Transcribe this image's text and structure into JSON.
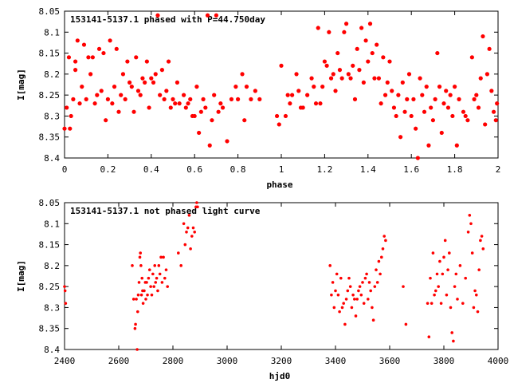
{
  "chart_data": [
    {
      "type": "scatter",
      "title": "153141-5137.1 phased with P=44.750day",
      "xlabel": "phase",
      "ylabel": "I[mag]",
      "xlim": [
        0,
        2
      ],
      "ylim": [
        8.05,
        8.4
      ],
      "y_inverted": true,
      "xticks": [
        "0",
        "0.2",
        "0.4",
        "0.6",
        "0.8",
        "1",
        "1.2",
        "1.4",
        "1.6",
        "1.8",
        "2"
      ],
      "yticks": [
        "8.05",
        "8.1",
        "8.15",
        "8.2",
        "8.25",
        "8.3",
        "8.35",
        "8.4"
      ],
      "grid": false,
      "legend": "none",
      "point_color": "#ff0000",
      "points": [
        [
          0.0,
          8.33
        ],
        [
          0.01,
          8.28
        ],
        [
          0.02,
          8.16
        ],
        [
          0.025,
          8.33
        ],
        [
          0.03,
          8.3
        ],
        [
          0.04,
          8.26
        ],
        [
          0.05,
          8.19
        ],
        [
          0.05,
          8.17
        ],
        [
          0.06,
          8.12
        ],
        [
          0.07,
          8.27
        ],
        [
          0.08,
          8.23
        ],
        [
          0.09,
          8.13
        ],
        [
          0.1,
          8.26
        ],
        [
          0.11,
          8.16
        ],
        [
          0.12,
          8.2
        ],
        [
          0.13,
          8.16
        ],
        [
          0.14,
          8.27
        ],
        [
          0.15,
          8.25
        ],
        [
          0.16,
          8.14
        ],
        [
          0.17,
          8.24
        ],
        [
          0.18,
          8.15
        ],
        [
          0.19,
          8.31
        ],
        [
          0.2,
          8.26
        ],
        [
          0.21,
          8.12
        ],
        [
          0.22,
          8.27
        ],
        [
          0.23,
          8.23
        ],
        [
          0.24,
          8.14
        ],
        [
          0.25,
          8.29
        ],
        [
          0.26,
          8.25
        ],
        [
          0.27,
          8.2
        ],
        [
          0.28,
          8.26
        ],
        [
          0.29,
          8.17
        ],
        [
          0.3,
          8.22
        ],
        [
          0.31,
          8.23
        ],
        [
          0.32,
          8.29
        ],
        [
          0.33,
          8.16
        ],
        [
          0.34,
          8.24
        ],
        [
          0.35,
          8.25
        ],
        [
          0.36,
          8.21
        ],
        [
          0.37,
          8.22
        ],
        [
          0.38,
          8.17
        ],
        [
          0.39,
          8.28
        ],
        [
          0.4,
          8.21
        ],
        [
          0.41,
          8.22
        ],
        [
          0.42,
          8.2
        ],
        [
          0.43,
          8.06
        ],
        [
          0.44,
          8.25
        ],
        [
          0.45,
          8.19
        ],
        [
          0.46,
          8.26
        ],
        [
          0.47,
          8.24
        ],
        [
          0.48,
          8.17
        ],
        [
          0.49,
          8.28
        ],
        [
          0.5,
          8.26
        ],
        [
          0.51,
          8.27
        ],
        [
          0.52,
          8.22
        ],
        [
          0.53,
          8.27
        ],
        [
          0.55,
          8.25
        ],
        [
          0.56,
          8.28
        ],
        [
          0.57,
          8.27
        ],
        [
          0.58,
          8.26
        ],
        [
          0.59,
          8.3
        ],
        [
          0.6,
          8.3
        ],
        [
          0.61,
          8.23
        ],
        [
          0.62,
          8.34
        ],
        [
          0.63,
          8.29
        ],
        [
          0.64,
          8.26
        ],
        [
          0.65,
          8.28
        ],
        [
          0.66,
          8.06
        ],
        [
          0.67,
          8.37
        ],
        [
          0.68,
          8.31
        ],
        [
          0.69,
          8.25
        ],
        [
          0.7,
          8.06
        ],
        [
          0.71,
          8.29
        ],
        [
          0.72,
          8.27
        ],
        [
          0.73,
          8.28
        ],
        [
          0.75,
          8.36
        ],
        [
          0.77,
          8.26
        ],
        [
          0.79,
          8.23
        ],
        [
          0.8,
          8.26
        ],
        [
          0.82,
          8.2
        ],
        [
          0.83,
          8.31
        ],
        [
          0.84,
          8.23
        ],
        [
          0.86,
          8.26
        ],
        [
          0.88,
          8.24
        ],
        [
          0.9,
          8.26
        ],
        [
          0.98,
          8.3
        ],
        [
          0.99,
          8.32
        ],
        [
          1.0,
          8.18
        ],
        [
          1.02,
          8.3
        ],
        [
          1.03,
          8.25
        ],
        [
          1.04,
          8.27
        ],
        [
          1.05,
          8.25
        ],
        [
          1.07,
          8.2
        ],
        [
          1.08,
          8.24
        ],
        [
          1.09,
          8.28
        ],
        [
          1.1,
          8.28
        ],
        [
          1.12,
          8.25
        ],
        [
          1.14,
          8.21
        ],
        [
          1.15,
          8.23
        ],
        [
          1.16,
          8.27
        ],
        [
          1.17,
          8.09
        ],
        [
          1.18,
          8.27
        ],
        [
          1.19,
          8.23
        ],
        [
          1.2,
          8.17
        ],
        [
          1.21,
          8.18
        ],
        [
          1.22,
          8.1
        ],
        [
          1.23,
          8.21
        ],
        [
          1.24,
          8.2
        ],
        [
          1.25,
          8.24
        ],
        [
          1.26,
          8.15
        ],
        [
          1.27,
          8.19
        ],
        [
          1.28,
          8.21
        ],
        [
          1.29,
          8.1
        ],
        [
          1.3,
          8.08
        ],
        [
          1.31,
          8.2
        ],
        [
          1.32,
          8.21
        ],
        [
          1.33,
          8.18
        ],
        [
          1.34,
          8.26
        ],
        [
          1.35,
          8.14
        ],
        [
          1.36,
          8.19
        ],
        [
          1.37,
          8.09
        ],
        [
          1.38,
          8.22
        ],
        [
          1.39,
          8.12
        ],
        [
          1.4,
          8.17
        ],
        [
          1.41,
          8.08
        ],
        [
          1.42,
          8.15
        ],
        [
          1.43,
          8.21
        ],
        [
          1.44,
          8.13
        ],
        [
          1.45,
          8.21
        ],
        [
          1.46,
          8.27
        ],
        [
          1.47,
          8.16
        ],
        [
          1.48,
          8.25
        ],
        [
          1.49,
          8.22
        ],
        [
          1.5,
          8.17
        ],
        [
          1.51,
          8.24
        ],
        [
          1.52,
          8.28
        ],
        [
          1.53,
          8.3
        ],
        [
          1.54,
          8.25
        ],
        [
          1.55,
          8.35
        ],
        [
          1.56,
          8.22
        ],
        [
          1.57,
          8.29
        ],
        [
          1.58,
          8.26
        ],
        [
          1.59,
          8.2
        ],
        [
          1.6,
          8.3
        ],
        [
          1.61,
          8.26
        ],
        [
          1.62,
          8.33
        ],
        [
          1.63,
          8.4
        ],
        [
          1.64,
          8.21
        ],
        [
          1.65,
          8.25
        ],
        [
          1.66,
          8.29
        ],
        [
          1.67,
          8.23
        ],
        [
          1.68,
          8.37
        ],
        [
          1.69,
          8.28
        ],
        [
          1.7,
          8.31
        ],
        [
          1.71,
          8.26
        ],
        [
          1.72,
          8.15
        ],
        [
          1.73,
          8.23
        ],
        [
          1.74,
          8.34
        ],
        [
          1.75,
          8.27
        ],
        [
          1.76,
          8.24
        ],
        [
          1.77,
          8.28
        ],
        [
          1.78,
          8.25
        ],
        [
          1.79,
          8.3
        ],
        [
          1.8,
          8.23
        ],
        [
          1.81,
          8.37
        ],
        [
          1.82,
          8.26
        ],
        [
          1.84,
          8.29
        ],
        [
          1.85,
          8.3
        ],
        [
          1.86,
          8.31
        ],
        [
          1.88,
          8.16
        ],
        [
          1.89,
          8.26
        ],
        [
          1.9,
          8.25
        ],
        [
          1.91,
          8.28
        ],
        [
          1.92,
          8.21
        ],
        [
          1.93,
          8.11
        ],
        [
          1.94,
          8.32
        ],
        [
          1.95,
          8.2
        ],
        [
          1.96,
          8.14
        ],
        [
          1.97,
          8.24
        ],
        [
          1.98,
          8.29
        ],
        [
          1.99,
          8.31
        ],
        [
          1.995,
          8.27
        ]
      ]
    },
    {
      "type": "scatter",
      "title": "153141-5137.1 not phased light curve",
      "xlabel": "hjd0",
      "ylabel": "I[mag]",
      "xlim": [
        2400,
        4000
      ],
      "ylim": [
        8.05,
        8.4
      ],
      "y_inverted": true,
      "xticks": [
        "2400",
        "2600",
        "2800",
        "3000",
        "3200",
        "3400",
        "3600",
        "3800",
        "4000"
      ],
      "yticks": [
        "8.05",
        "8.1",
        "8.15",
        "8.2",
        "8.25",
        "8.3",
        "8.35",
        "8.4"
      ],
      "grid": false,
      "legend": "none",
      "point_color": "#ff0000",
      "points": [
        [
          2400,
          8.25
        ],
        [
          2402,
          8.26
        ],
        [
          2404,
          8.29
        ],
        [
          2650,
          8.2
        ],
        [
          2655,
          8.28
        ],
        [
          2660,
          8.35
        ],
        [
          2662,
          8.34
        ],
        [
          2665,
          8.28
        ],
        [
          2668,
          8.4
        ],
        [
          2670,
          8.31
        ],
        [
          2672,
          8.27
        ],
        [
          2675,
          8.24
        ],
        [
          2678,
          8.18
        ],
        [
          2680,
          8.17
        ],
        [
          2682,
          8.2
        ],
        [
          2684,
          8.27
        ],
        [
          2686,
          8.23
        ],
        [
          2688,
          8.26
        ],
        [
          2690,
          8.29
        ],
        [
          2694,
          8.26
        ],
        [
          2698,
          8.24
        ],
        [
          2700,
          8.28
        ],
        [
          2703,
          8.24
        ],
        [
          2706,
          8.27
        ],
        [
          2710,
          8.23
        ],
        [
          2714,
          8.21
        ],
        [
          2718,
          8.25
        ],
        [
          2722,
          8.27
        ],
        [
          2726,
          8.22
        ],
        [
          2730,
          8.25
        ],
        [
          2733,
          8.2
        ],
        [
          2736,
          8.24
        ],
        [
          2740,
          8.23
        ],
        [
          2744,
          8.26
        ],
        [
          2748,
          8.2
        ],
        [
          2752,
          8.22
        ],
        [
          2756,
          8.18
        ],
        [
          2760,
          8.24
        ],
        [
          2765,
          8.18
        ],
        [
          2770,
          8.23
        ],
        [
          2775,
          8.21
        ],
        [
          2780,
          8.25
        ],
        [
          2820,
          8.17
        ],
        [
          2830,
          8.2
        ],
        [
          2840,
          8.1
        ],
        [
          2845,
          8.15
        ],
        [
          2850,
          8.12
        ],
        [
          2855,
          8.11
        ],
        [
          2860,
          8.08
        ],
        [
          2865,
          8.16
        ],
        [
          2870,
          8.13
        ],
        [
          2875,
          8.11
        ],
        [
          2880,
          8.12
        ],
        [
          2885,
          8.06
        ],
        [
          2888,
          8.05
        ],
        [
          2891,
          8.06
        ],
        [
          3380,
          8.2
        ],
        [
          3385,
          8.27
        ],
        [
          3390,
          8.24
        ],
        [
          3395,
          8.3
        ],
        [
          3400,
          8.26
        ],
        [
          3405,
          8.22
        ],
        [
          3410,
          8.27
        ],
        [
          3415,
          8.31
        ],
        [
          3420,
          8.23
        ],
        [
          3425,
          8.3
        ],
        [
          3430,
          8.29
        ],
        [
          3435,
          8.34
        ],
        [
          3440,
          8.28
        ],
        [
          3445,
          8.26
        ],
        [
          3450,
          8.23
        ],
        [
          3455,
          8.25
        ],
        [
          3460,
          8.3
        ],
        [
          3465,
          8.27
        ],
        [
          3470,
          8.28
        ],
        [
          3475,
          8.32
        ],
        [
          3480,
          8.28
        ],
        [
          3485,
          8.26
        ],
        [
          3490,
          8.25
        ],
        [
          3495,
          8.27
        ],
        [
          3500,
          8.24
        ],
        [
          3505,
          8.29
        ],
        [
          3510,
          8.23
        ],
        [
          3515,
          8.22
        ],
        [
          3520,
          8.28
        ],
        [
          3525,
          8.24
        ],
        [
          3530,
          8.26
        ],
        [
          3535,
          8.3
        ],
        [
          3540,
          8.33
        ],
        [
          3545,
          8.25
        ],
        [
          3550,
          8.21
        ],
        [
          3555,
          8.24
        ],
        [
          3560,
          8.19
        ],
        [
          3565,
          8.22
        ],
        [
          3570,
          8.18
        ],
        [
          3575,
          8.16
        ],
        [
          3580,
          8.13
        ],
        [
          3585,
          8.14
        ],
        [
          3650,
          8.25
        ],
        [
          3660,
          8.34
        ],
        [
          3740,
          8.29
        ],
        [
          3745,
          8.37
        ],
        [
          3750,
          8.23
        ],
        [
          3755,
          8.29
        ],
        [
          3760,
          8.17
        ],
        [
          3765,
          8.27
        ],
        [
          3770,
          8.26
        ],
        [
          3775,
          8.22
        ],
        [
          3780,
          8.25
        ],
        [
          3785,
          8.19
        ],
        [
          3790,
          8.29
        ],
        [
          3795,
          8.22
        ],
        [
          3800,
          8.18
        ],
        [
          3805,
          8.14
        ],
        [
          3810,
          8.27
        ],
        [
          3815,
          8.21
        ],
        [
          3820,
          8.17
        ],
        [
          3825,
          8.3
        ],
        [
          3830,
          8.36
        ],
        [
          3835,
          8.38
        ],
        [
          3840,
          8.25
        ],
        [
          3845,
          8.22
        ],
        [
          3850,
          8.28
        ],
        [
          3860,
          8.2
        ],
        [
          3870,
          8.29
        ],
        [
          3880,
          8.23
        ],
        [
          3890,
          8.12
        ],
        [
          3895,
          8.08
        ],
        [
          3900,
          8.1
        ],
        [
          3905,
          8.17
        ],
        [
          3910,
          8.3
        ],
        [
          3915,
          8.26
        ],
        [
          3920,
          8.27
        ],
        [
          3925,
          8.31
        ],
        [
          3930,
          8.21
        ],
        [
          3935,
          8.14
        ],
        [
          3940,
          8.13
        ],
        [
          3945,
          8.16
        ]
      ]
    }
  ]
}
